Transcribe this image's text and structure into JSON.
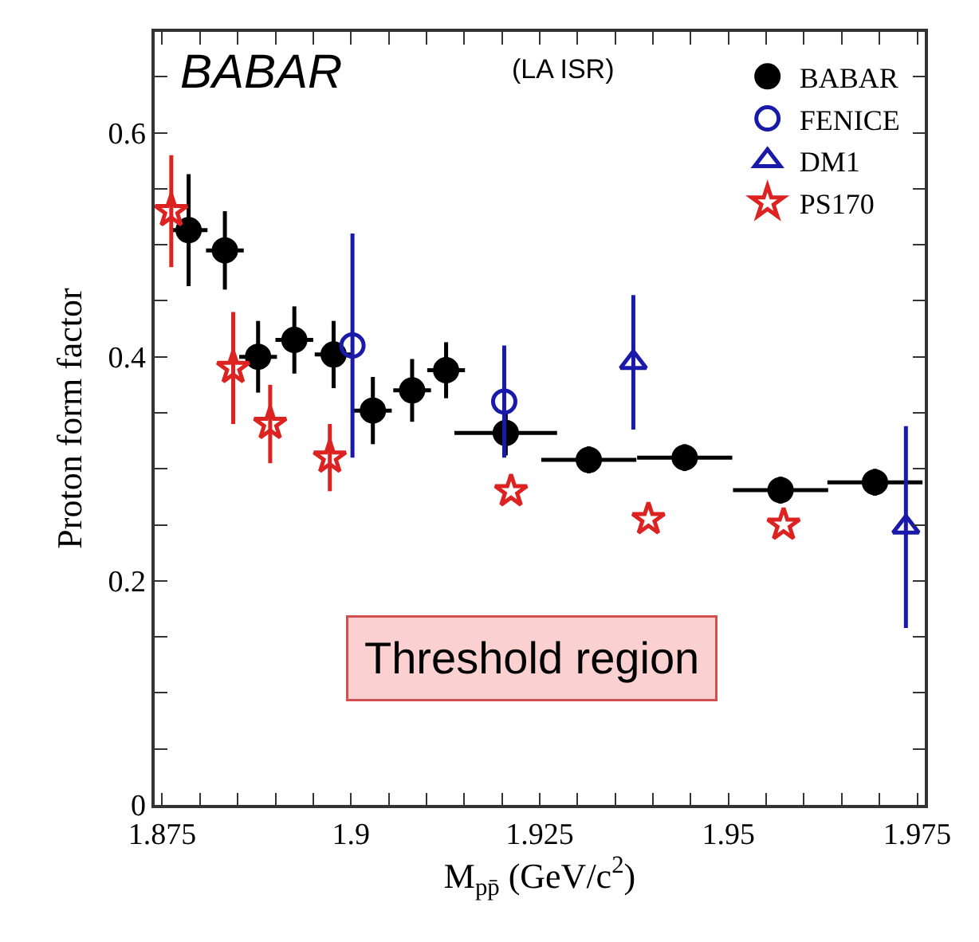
{
  "chart_data": {
    "type": "scatter",
    "xlabel": "M$_{pp̄}$ (GeV/c$^{2}$)",
    "ylabel": "Proton form factor",
    "xlim": [
      1.874,
      1.976
    ],
    "xticks": [
      {
        "value": 1.875,
        "label": "1.875"
      },
      {
        "value": 1.88,
        "label": null
      },
      {
        "value": 1.885,
        "label": null
      },
      {
        "value": 1.89,
        "label": null
      },
      {
        "value": 1.895,
        "label": null
      },
      {
        "value": 1.9,
        "label": "1.9"
      },
      {
        "value": 1.905,
        "label": null
      },
      {
        "value": 1.91,
        "label": null
      },
      {
        "value": 1.915,
        "label": null
      },
      {
        "value": 1.92,
        "label": null
      },
      {
        "value": 1.925,
        "label": "1.925"
      },
      {
        "value": 1.93,
        "label": null
      },
      {
        "value": 1.935,
        "label": null
      },
      {
        "value": 1.94,
        "label": null
      },
      {
        "value": 1.945,
        "label": null
      },
      {
        "value": 1.95,
        "label": "1.95"
      },
      {
        "value": 1.955,
        "label": null
      },
      {
        "value": 1.96,
        "label": null
      },
      {
        "value": 1.965,
        "label": null
      },
      {
        "value": 1.97,
        "label": null
      },
      {
        "value": 1.975,
        "label": "1.975"
      }
    ],
    "ylim": [
      0,
      0.69
    ],
    "yticks": [
      0,
      {
        "value": 0.05,
        "label": null
      },
      {
        "value": 0.1,
        "label": null
      },
      {
        "value": 0.15,
        "label": null
      },
      {
        "value": 0.2,
        "label": "0.2"
      },
      {
        "value": 0.25,
        "label": null
      },
      {
        "value": 0.3,
        "label": null
      },
      {
        "value": 0.35,
        "label": null
      },
      {
        "value": 0.4,
        "label": "0.4"
      },
      {
        "value": 0.45,
        "label": null
      },
      {
        "value": 0.5,
        "label": null
      },
      {
        "value": 0.55,
        "label": null
      },
      {
        "value": 0.6,
        "label": "0.6"
      },
      {
        "value": 0.65,
        "label": null
      }
    ],
    "grid": false,
    "legend": "top right",
    "series": [
      {
        "name": "BABAR",
        "color": "#000000",
        "marker": "circle",
        "x": [
          1.8785,
          1.8833,
          1.8877,
          1.8925,
          1.8977,
          1.9029,
          1.9081,
          1.9126,
          1.9205,
          1.9315,
          1.9442,
          1.9569,
          1.9694
        ],
        "values": [
          0.513,
          0.495,
          0.4,
          0.415,
          0.402,
          0.352,
          0.37,
          0.388,
          0.332,
          0.308,
          0.31,
          0.281,
          0.288
        ],
        "errors": [
          0.05,
          0.035,
          0.032,
          0.03,
          0.03,
          0.03,
          0.028,
          0.025,
          0.02,
          0.012,
          0.012,
          0.012,
          0.012
        ],
        "xerrors": [
          0.0025,
          0.0025,
          0.0025,
          0.0025,
          0.0025,
          0.0025,
          0.0025,
          0.0025,
          0.0068,
          0.0063,
          0.0063,
          0.0063,
          0.0063
        ]
      },
      {
        "name": "FENICE",
        "color": "#1a1aaa",
        "marker": "circle",
        "x": [
          1.9002,
          1.9203
        ],
        "values": [
          0.41,
          0.36
        ],
        "errors": [
          0.1,
          0.05
        ]
      },
      {
        "name": "DM1",
        "color": "#1a1aaa",
        "marker": "triangle",
        "x": [
          1.9374,
          1.9735
        ],
        "values": [
          0.395,
          0.248
        ],
        "errors": [
          0.06,
          0.09
        ]
      },
      {
        "name": "PS170",
        "color": "#dd2222",
        "marker": "star",
        "x": [
          1.8762,
          1.8844,
          1.8893,
          1.8972,
          1.9212,
          1.9394,
          1.9573
        ],
        "values": [
          0.53,
          0.39,
          0.34,
          0.31,
          0.28,
          0.255,
          0.25
        ],
        "errors": [
          0.05,
          0.05,
          0.035,
          0.03,
          null,
          null,
          null
        ]
      }
    ],
    "annotations": [
      "BABAR",
      "(LA ISR)",
      "Threshold region"
    ]
  }
}
